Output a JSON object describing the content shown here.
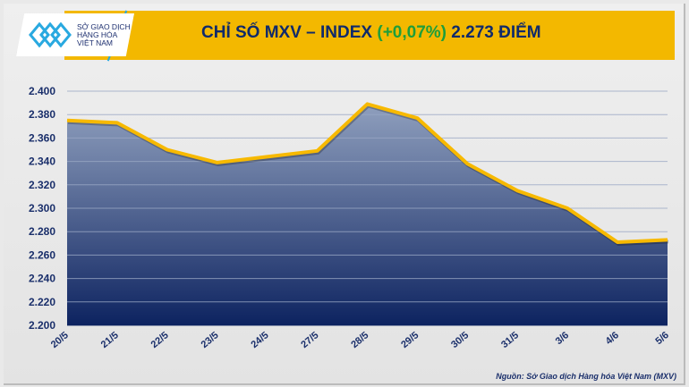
{
  "header": {
    "logo_lines": [
      "SỞ GIAO DỊCH",
      "HÀNG HÓA",
      "VIỆT NAM"
    ],
    "title_prefix": "CHỈ SỐ MXV – INDEX ",
    "title_change": "(+0,07%)",
    "title_suffix": " 2.273 ĐIỂM"
  },
  "source": "Nguồn: Sở Giao dịch Hàng hóa Việt Nam (MXV)",
  "colors": {
    "banner": "#f3b800",
    "line": "#f7b900",
    "fill_top": "#8a9bbb",
    "fill_bottom": "#0d2360",
    "positive": "#1f9e3a"
  },
  "chart_data": {
    "type": "area",
    "title": "CHỈ SỐ MXV – INDEX (+0,07%) 2.273 ĐIỂM",
    "categories": [
      "20/5",
      "21/5",
      "22/5",
      "23/5",
      "24/5",
      "27/5",
      "28/5",
      "29/5",
      "30/5",
      "31/5",
      "3/6",
      "4/6",
      "5/6"
    ],
    "values": [
      2375,
      2373,
      2350,
      2339,
      2344,
      2349,
      2389,
      2377,
      2338,
      2315,
      2300,
      2271,
      2273
    ],
    "ylim": [
      2200,
      2400
    ],
    "yticks": [
      2200,
      2220,
      2240,
      2260,
      2280,
      2300,
      2320,
      2340,
      2360,
      2380,
      2400
    ],
    "ytick_labels": [
      "2.200",
      "2.220",
      "2.240",
      "2.260",
      "2.280",
      "2.300",
      "2.320",
      "2.340",
      "2.360",
      "2.380",
      "2.400"
    ],
    "grid": true
  }
}
